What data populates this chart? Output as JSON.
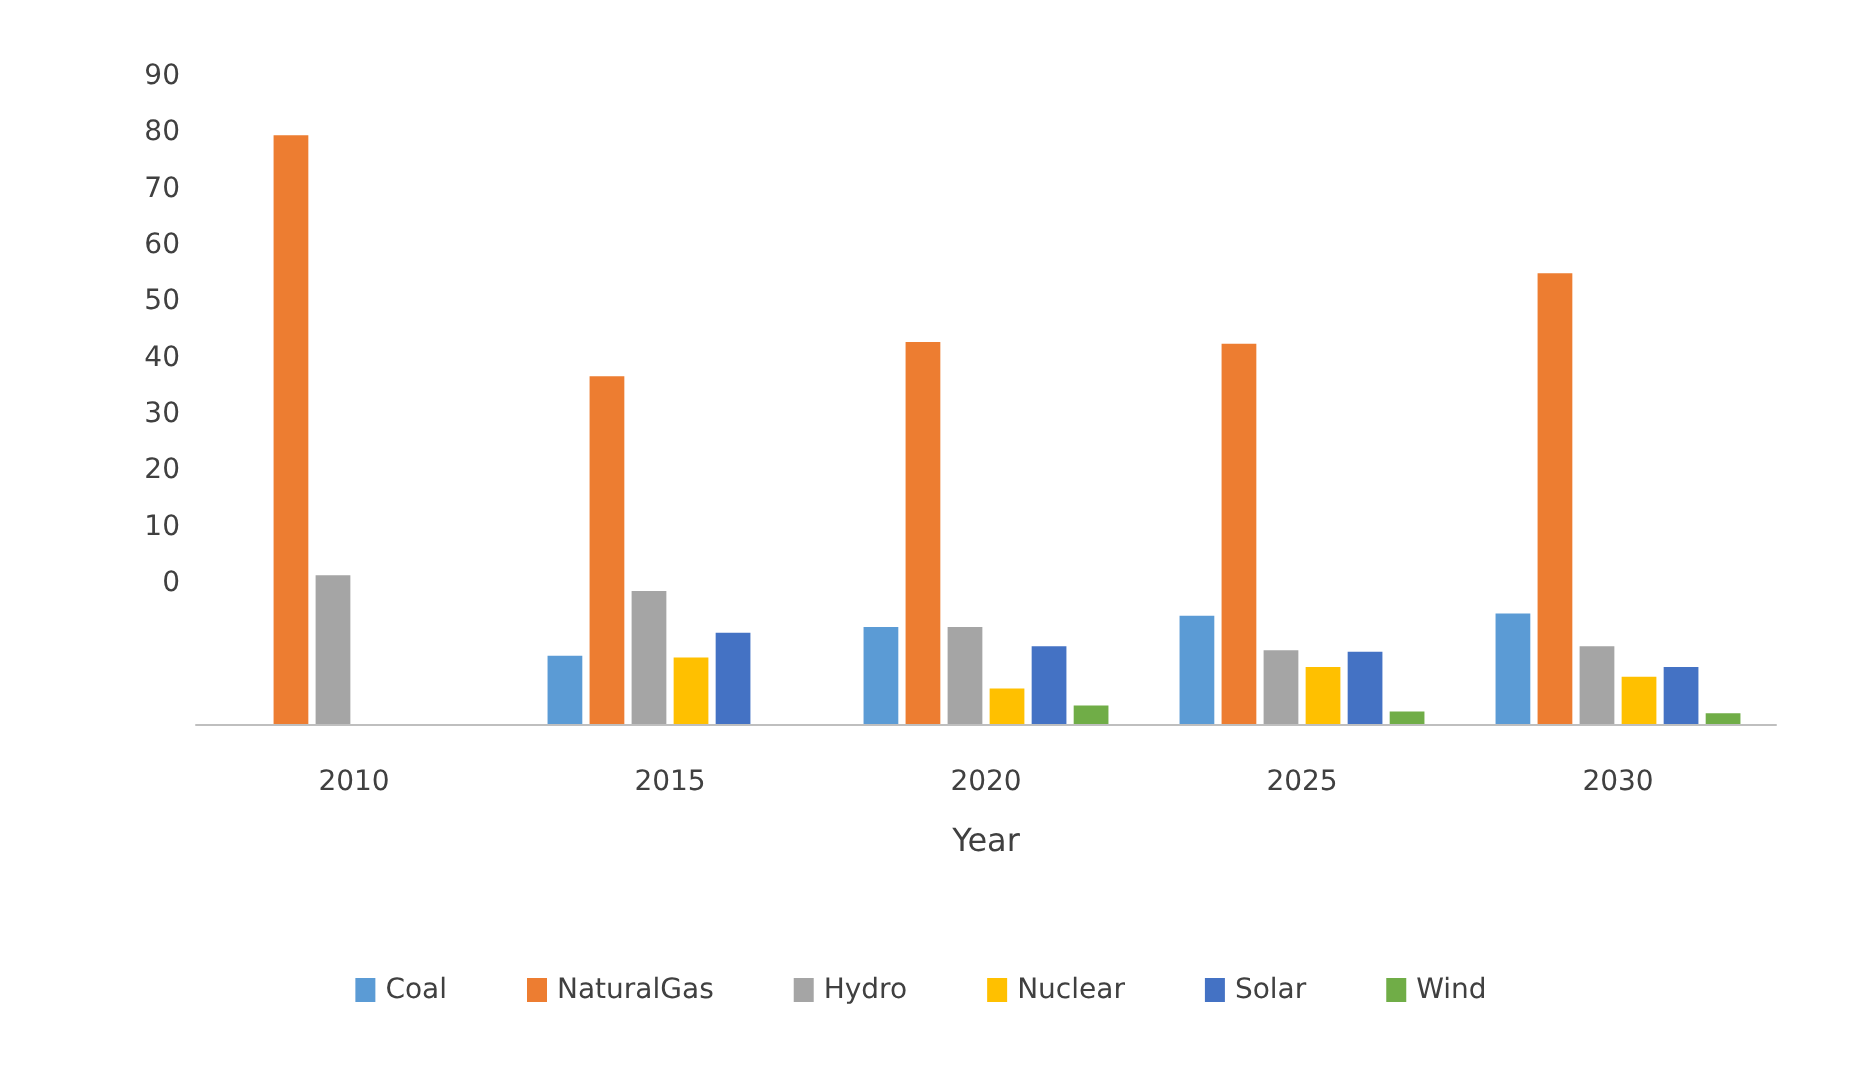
{
  "chart_data": {
    "type": "bar",
    "xlabel": "Year",
    "categories": [
      "2010",
      "2015",
      "2020",
      "2025",
      "2030"
    ],
    "ylim": [
      -25,
      90
    ],
    "yticks": [
      0,
      10,
      20,
      30,
      40,
      50,
      60,
      70,
      80,
      90
    ],
    "legend": "bottom",
    "series": [
      {
        "name": "Coal",
        "color": "#5b9bd5",
        "base": [
          null,
          -25,
          -25,
          -25,
          -25
        ],
        "values": [
          null,
          12.1,
          17.2,
          19.2,
          19.6
        ]
      },
      {
        "name": "NaturalGas",
        "color": "#ed7d31",
        "base": [
          -25,
          -25,
          -25,
          -25,
          -25
        ],
        "values": [
          104.5,
          61.7,
          67.8,
          67.5,
          80
        ]
      },
      {
        "name": "Hydro",
        "color": "#a5a5a5",
        "base": [
          -25,
          -25,
          -25,
          -25,
          -25
        ],
        "values": [
          26.4,
          23.6,
          17.2,
          13.1,
          13.8
        ]
      },
      {
        "name": "Nuclear",
        "color": "#ffc000",
        "base": [
          null,
          -25,
          -25,
          -25,
          -25
        ],
        "values": [
          null,
          11.8,
          6.3,
          10.1,
          8.4
        ]
      },
      {
        "name": "Solar",
        "color": "#4472c4",
        "base": [
          null,
          -25,
          -25,
          -25,
          -25
        ],
        "values": [
          null,
          16.2,
          13.8,
          12.8,
          10.1
        ]
      },
      {
        "name": "Wind",
        "color": "#70ad47",
        "base": [
          null,
          null,
          -25,
          -25,
          -25
        ],
        "values": [
          null,
          null,
          3.3,
          2.2,
          1.9
        ]
      }
    ]
  }
}
